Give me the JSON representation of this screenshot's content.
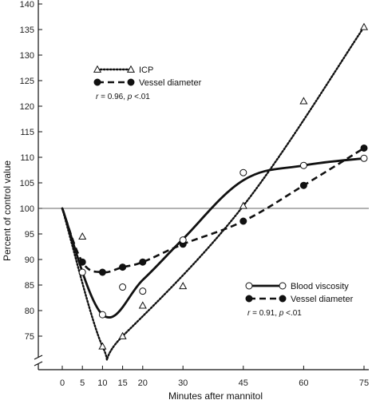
{
  "chart_data": {
    "type": "line",
    "xlabel": "Minutes after mannitol",
    "ylabel": "Percent of control value",
    "x_ticks": [
      0,
      5,
      10,
      15,
      20,
      30,
      45,
      60,
      75
    ],
    "y_ticks": [
      75,
      80,
      85,
      90,
      95,
      100,
      105,
      110,
      115,
      120,
      125,
      130,
      135,
      140
    ],
    "xlim": [
      0,
      75
    ],
    "ylim": [
      70,
      140
    ],
    "y_axis_break": true,
    "reference_line": 100,
    "series": [
      {
        "name": "ICP",
        "style": "dotted",
        "marker": "open-triangle",
        "x": [
          5,
          10,
          15,
          20,
          30,
          45,
          60,
          75
        ],
        "y": [
          94.5,
          73,
          75,
          81,
          84.8,
          100.5,
          121,
          135.5
        ],
        "curve_x": [
          0,
          10,
          15,
          45,
          75
        ],
        "curve_y": [
          100,
          73,
          75,
          100.5,
          135.5
        ]
      },
      {
        "name": "Vessel diameter",
        "style": "dashed",
        "marker": "filled-circle",
        "x": [
          5,
          10,
          15,
          20,
          30,
          45,
          60,
          75
        ],
        "y": [
          89.5,
          87.5,
          88.5,
          89.5,
          93,
          97.5,
          104.5,
          111.8
        ],
        "curve_x": [
          0,
          5,
          10,
          15,
          20,
          30,
          45,
          60,
          75
        ],
        "curve_y": [
          100,
          89.5,
          87.5,
          88.5,
          89.5,
          93,
          97.5,
          104.5,
          111.8
        ]
      },
      {
        "name": "Blood viscosity",
        "style": "solid",
        "marker": "open-circle",
        "x": [
          5,
          10,
          15,
          20,
          30,
          45,
          60,
          75
        ],
        "y": [
          87.5,
          79.2,
          84.6,
          83.8,
          93.8,
          107,
          108.4,
          109.8
        ],
        "curve_x": [
          0,
          10,
          20,
          30,
          45,
          60,
          75
        ],
        "curve_y": [
          100,
          79.2,
          86,
          94,
          105.5,
          108.4,
          109.8
        ]
      }
    ],
    "legends": [
      {
        "position": "top-left",
        "entries": [
          {
            "series": "ICP",
            "label": "ICP"
          },
          {
            "series": "Vessel diameter",
            "label": "Vessel diameter"
          }
        ],
        "stat": {
          "r": "r",
          "r_value": " = 0.96, ",
          "p": "p",
          "p_value": " <.01"
        }
      },
      {
        "position": "bottom-right",
        "entries": [
          {
            "series": "Blood viscosity",
            "label": "Blood viscosity"
          },
          {
            "series": "Vessel diameter",
            "label": "Vessel diameter"
          }
        ],
        "stat": {
          "r": "r",
          "r_value": " = 0.91, ",
          "p": "p",
          "p_value": " <.01"
        }
      }
    ]
  }
}
